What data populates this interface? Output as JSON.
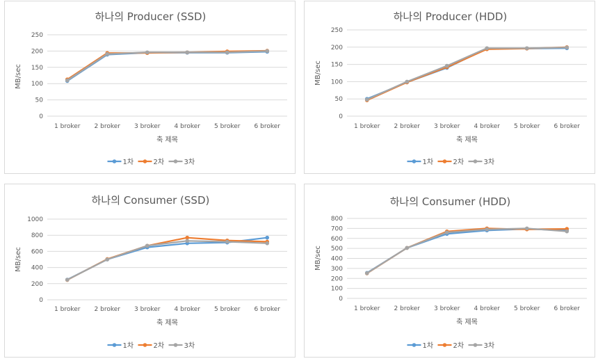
{
  "chart_data": [
    {
      "type": "line",
      "title": "하나의 Producer (SSD)",
      "xlabel": "축 제목",
      "ylabel": "MB/sec",
      "ylim": [
        0,
        250
      ],
      "yticks": [
        0,
        50,
        100,
        150,
        200,
        250
      ],
      "categories": [
        "1 broker",
        "2 broker",
        "3 broker",
        "4 broker",
        "5 broker",
        "6 broker"
      ],
      "series": [
        {
          "name": "1차",
          "color": "#5b9bd5",
          "values": [
            108,
            189,
            195,
            195,
            195,
            198
          ]
        },
        {
          "name": "2차",
          "color": "#ed7d31",
          "values": [
            113,
            194,
            194,
            196,
            199,
            201
          ]
        },
        {
          "name": "3차",
          "color": "#a5a5a5",
          "values": [
            110,
            191,
            196,
            196,
            196,
            200
          ]
        }
      ],
      "legend": "bottom",
      "grid": true
    },
    {
      "type": "line",
      "title": "하나의 Producer (HDD)",
      "xlabel": "축 제목",
      "ylabel": "MB/sec",
      "ylim": [
        0,
        250
      ],
      "yticks": [
        0,
        50,
        100,
        150,
        200,
        250
      ],
      "categories": [
        "1 broker",
        "2 broker",
        "3 broker",
        "4 broker",
        "5 broker",
        "6 broker"
      ],
      "series": [
        {
          "name": "1차",
          "color": "#5b9bd5",
          "values": [
            50,
            98,
            140,
            196,
            196,
            197
          ]
        },
        {
          "name": "2차",
          "color": "#ed7d31",
          "values": [
            46,
            98,
            142,
            194,
            196,
            200
          ]
        },
        {
          "name": "3차",
          "color": "#a5a5a5",
          "values": [
            48,
            100,
            146,
            197,
            197,
            199
          ]
        }
      ],
      "legend": "bottom",
      "grid": true
    },
    {
      "type": "line",
      "title": "하나의 Consumer (SSD)",
      "xlabel": "축 제목",
      "ylabel": "MB/sec",
      "ylim": [
        0,
        1000
      ],
      "yticks": [
        0,
        200,
        400,
        600,
        800,
        1000
      ],
      "categories": [
        "1 broker",
        "2 broker",
        "3 broker",
        "4 broker",
        "5 broker",
        "6 broker"
      ],
      "series": [
        {
          "name": "1차",
          "color": "#5b9bd5",
          "values": [
            250,
            500,
            650,
            700,
            710,
            770
          ]
        },
        {
          "name": "2차",
          "color": "#ed7d31",
          "values": [
            245,
            505,
            670,
            770,
            735,
            720
          ]
        },
        {
          "name": "3차",
          "color": "#a5a5a5",
          "values": [
            248,
            500,
            670,
            730,
            720,
            700
          ]
        }
      ],
      "legend": "bottom",
      "grid": true
    },
    {
      "type": "line",
      "title": "하나의 Consumer (HDD)",
      "xlabel": "축 제목",
      "ylabel": "MB/sec",
      "ylim": [
        0,
        800
      ],
      "yticks": [
        0,
        100,
        200,
        300,
        400,
        500,
        600,
        700,
        800
      ],
      "categories": [
        "1 broker",
        "2 broker",
        "3 broker",
        "4 broker",
        "5 broker",
        "6 broker"
      ],
      "series": [
        {
          "name": "1차",
          "color": "#5b9bd5",
          "values": [
            255,
            505,
            645,
            680,
            695,
            680
          ]
        },
        {
          "name": "2차",
          "color": "#ed7d31",
          "values": [
            250,
            505,
            670,
            700,
            690,
            695
          ]
        },
        {
          "name": "3차",
          "color": "#a5a5a5",
          "values": [
            252,
            505,
            660,
            690,
            700,
            670
          ]
        }
      ],
      "legend": "bottom",
      "grid": true
    }
  ]
}
